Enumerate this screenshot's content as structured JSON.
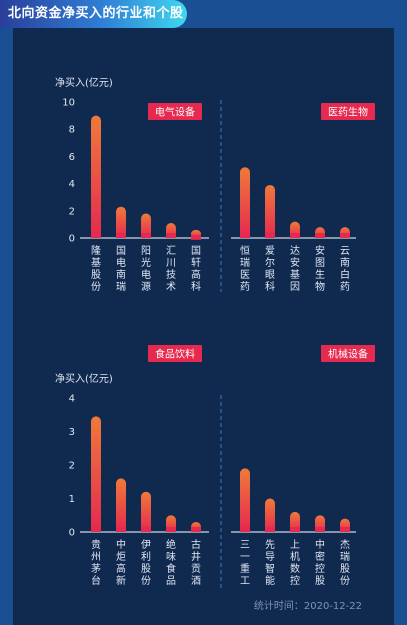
{
  "title": "北向资金净买入的行业和个股",
  "footer": {
    "stat_label": "统计时间：",
    "date": "2020-12-22"
  },
  "colors": {
    "bar_top": "#ef7a3a",
    "bar_bottom": "#e5294f",
    "badge": "#e5294f",
    "axis_text": "#dfe6f2",
    "divider": "#3a78c8"
  },
  "chart_data": [
    {
      "type": "bar",
      "ylabel": "净买入(亿元)",
      "ylim": [
        0,
        10
      ],
      "yticks": [
        0,
        2,
        4,
        6,
        8,
        10
      ],
      "grid": false,
      "groups": [
        {
          "name": "电气设备",
          "categories": [
            "隆基股份",
            "国电南瑞",
            "阳光电源",
            "汇川技术",
            "国轩高科"
          ],
          "values": [
            9.0,
            2.3,
            1.8,
            1.1,
            0.6
          ]
        },
        {
          "name": "医药生物",
          "categories": [
            "恒瑞医药",
            "爱尔眼科",
            "达安基因",
            "安图生物",
            "云南白药"
          ],
          "values": [
            5.2,
            3.9,
            1.2,
            0.8,
            0.8
          ]
        }
      ]
    },
    {
      "type": "bar",
      "ylabel": "净买入(亿元)",
      "ylim": [
        0,
        4
      ],
      "yticks": [
        0,
        1,
        2,
        3,
        4
      ],
      "grid": false,
      "groups": [
        {
          "name": "食品饮料",
          "categories": [
            "贵州茅台",
            "中炬高新",
            "伊利股份",
            "绝味食品",
            "古井贡酒"
          ],
          "values": [
            3.45,
            1.6,
            1.2,
            0.5,
            0.3
          ]
        },
        {
          "name": "机械设备",
          "categories": [
            "三一重工",
            "先导智能",
            "上机数控",
            "中密控股",
            "杰瑞股份"
          ],
          "values": [
            1.9,
            1.0,
            0.6,
            0.5,
            0.4
          ]
        }
      ]
    }
  ]
}
